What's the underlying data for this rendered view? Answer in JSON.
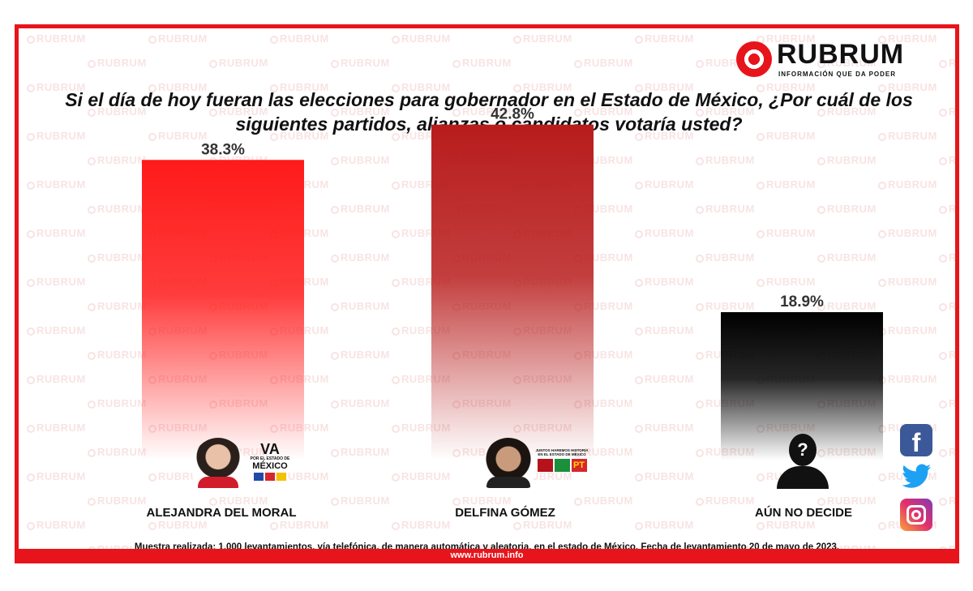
{
  "brand": {
    "name": "RUBRUM",
    "tagline": "INFORMACIÓN QUE DA PODER",
    "accent_color": "#e8141b",
    "url": "www.rubrum.info"
  },
  "chart_data": {
    "type": "bar",
    "title": "Si el día de hoy fueran las elecciones para gobernador en el Estado de México, ¿Por cuál de los siguientes partidos, alianzas o candidatos votaría usted?",
    "categories": [
      "ALEJANDRA DEL MORAL",
      "DELFINA GÓMEZ",
      "AÚN NO DECIDE"
    ],
    "values": [
      38.3,
      42.8,
      18.9
    ],
    "value_labels": [
      "38.3%",
      "42.8%",
      "18.9%"
    ],
    "bar_colors": [
      "#ff1a1a",
      "#b81c1c",
      "#000000"
    ],
    "ylim": [
      0,
      50
    ],
    "grid": false,
    "legend": "none"
  },
  "candidates": [
    {
      "party_logo_text": "VA",
      "party_logo_sub": "POR EL ESTADO DE",
      "party_logo_state": "MÉXICO"
    },
    {
      "party_logo_text": "PT",
      "party_logo_sub": "JUNTOS HAREMOS HISTORIA EN EL ESTADO DE MÉXICO",
      "party_logo_state": ""
    },
    {
      "party_logo_text": "?",
      "party_logo_sub": "",
      "party_logo_state": ""
    }
  ],
  "social_icons": [
    "facebook-icon",
    "twitter-icon",
    "instagram-icon"
  ],
  "footnote": "Muestra realizada: 1,000 levantamientos, vía telefónica, de manera automática y aleatoria, en el estado de México. Fecha de levantamiento 20  de mayo de 2023."
}
